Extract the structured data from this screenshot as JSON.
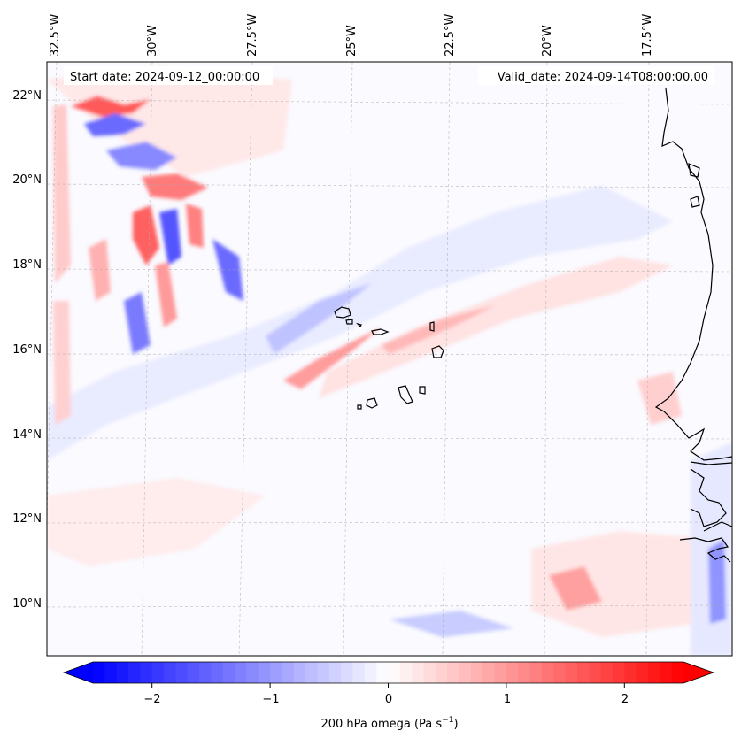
{
  "map": {
    "start_label": "Start date: 2024-09-12_00:00:00",
    "valid_label": "Valid_date: 2024-09-14T08:00:00.00",
    "lon_labels": [
      "32.5°W",
      "30°W",
      "27.5°W",
      "25°W",
      "22.5°W",
      "20°W",
      "17.5°W"
    ],
    "lat_labels": [
      "22°N",
      "20°N",
      "18°N",
      "16°N",
      "14°N",
      "12°N",
      "10°N"
    ],
    "field": "omega",
    "field_colors": {
      "negative": "#0000ff",
      "neutral": "#ffffff",
      "positive": "#ff0000"
    }
  },
  "colorbar": {
    "ticks": [
      "−2",
      "−1",
      "0",
      "1",
      "2"
    ],
    "tick_values": [
      -2,
      -1,
      0,
      1,
      2
    ],
    "range": [
      -2.5,
      2.5
    ],
    "label_main": "200 hPa omega (Pa s",
    "label_sup": "−1",
    "label_end": ")"
  }
}
